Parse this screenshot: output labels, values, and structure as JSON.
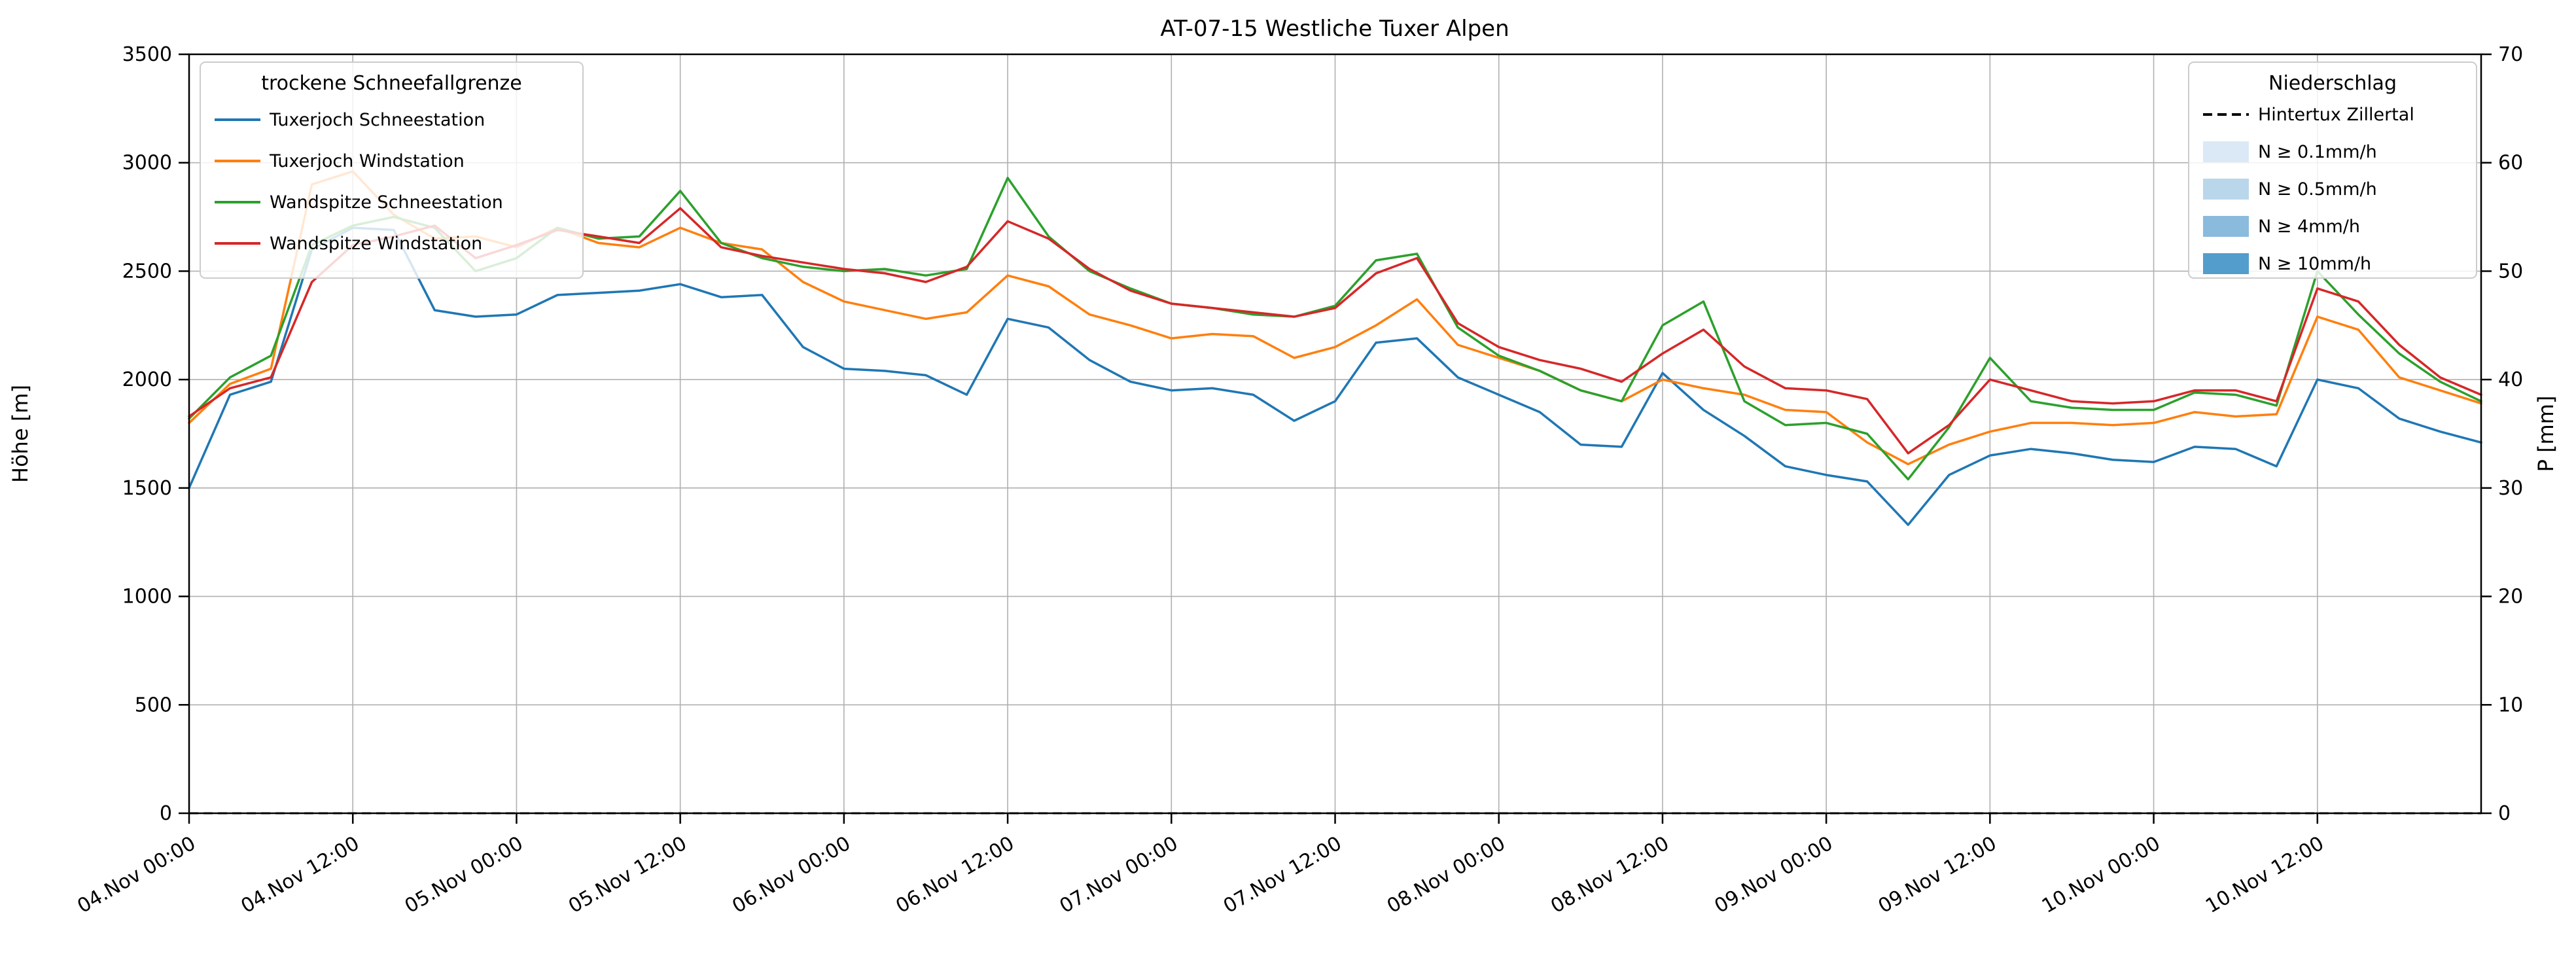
{
  "chart_data": {
    "type": "line",
    "title": "AT-07-15 Westliche Tuxer Alpen",
    "ylabel_left": "Höhe [m]",
    "ylabel_right": "P [mm]",
    "ylim_left": [
      0,
      3500
    ],
    "yticks_left": [
      0,
      500,
      1000,
      1500,
      2000,
      2500,
      3000,
      3500
    ],
    "ylim_right": [
      0,
      70
    ],
    "yticks_right": [
      0,
      10,
      20,
      30,
      40,
      50,
      60,
      70
    ],
    "grid": true,
    "legend_position_left": "upper left",
    "legend_position_right": "upper right",
    "xlim_hours": [
      0,
      168
    ],
    "xticks": [
      {
        "t": 0,
        "label": "04.Nov 00:00"
      },
      {
        "t": 12,
        "label": "04.Nov 12:00"
      },
      {
        "t": 24,
        "label": "05.Nov 00:00"
      },
      {
        "t": 36,
        "label": "05.Nov 12:00"
      },
      {
        "t": 48,
        "label": "06.Nov 00:00"
      },
      {
        "t": 60,
        "label": "06.Nov 12:00"
      },
      {
        "t": 72,
        "label": "07.Nov 00:00"
      },
      {
        "t": 84,
        "label": "07.Nov 12:00"
      },
      {
        "t": 96,
        "label": "08.Nov 00:00"
      },
      {
        "t": 108,
        "label": "08.Nov 12:00"
      },
      {
        "t": 120,
        "label": "09.Nov 00:00"
      },
      {
        "t": 132,
        "label": "09.Nov 12:00"
      },
      {
        "t": 144,
        "label": "10.Nov 00:00"
      },
      {
        "t": 156,
        "label": "10.Nov 12:00"
      }
    ],
    "x_hours": [
      0,
      3,
      6,
      9,
      12,
      15,
      18,
      21,
      24,
      27,
      30,
      33,
      36,
      39,
      42,
      45,
      48,
      51,
      54,
      57,
      60,
      63,
      66,
      69,
      72,
      75,
      78,
      81,
      84,
      87,
      90,
      93,
      96,
      99,
      102,
      105,
      108,
      111,
      114,
      117,
      120,
      123,
      126,
      129,
      132,
      135,
      138,
      141,
      144,
      147,
      150,
      153,
      156,
      159,
      162,
      165,
      168
    ],
    "series": [
      {
        "name": "Tuxerjoch Schneestation",
        "color": "#1f77b4",
        "axis": "left",
        "values": [
          1500,
          1930,
          1990,
          2600,
          2700,
          2690,
          2320,
          2290,
          2300,
          2390,
          2400,
          2410,
          2440,
          2380,
          2390,
          2150,
          2050,
          2040,
          2020,
          1930,
          2280,
          2240,
          2090,
          1990,
          1950,
          1960,
          1930,
          1810,
          1900,
          2170,
          2190,
          2010,
          1930,
          1850,
          1700,
          1690,
          2030,
          1860,
          1740,
          1600,
          1560,
          1530,
          1330,
          1560,
          1650,
          1680,
          1660,
          1630,
          1620,
          1690,
          1680,
          1600,
          2000,
          1960,
          1820,
          1760,
          1710
        ]
      },
      {
        "name": "Tuxerjoch Windstation",
        "color": "#ff7f0e",
        "axis": "left",
        "values": [
          1800,
          1980,
          2050,
          2900,
          2960,
          2760,
          2650,
          2660,
          2610,
          2700,
          2630,
          2610,
          2700,
          2630,
          2600,
          2450,
          2360,
          2320,
          2280,
          2310,
          2480,
          2430,
          2300,
          2250,
          2190,
          2210,
          2200,
          2100,
          2150,
          2250,
          2370,
          2160,
          2100,
          2040,
          1950,
          1900,
          2000,
          1960,
          1930,
          1860,
          1850,
          1710,
          1610,
          1700,
          1760,
          1800,
          1800,
          1790,
          1800,
          1850,
          1830,
          1840,
          2290,
          2230,
          2010,
          1950,
          1890
        ]
      },
      {
        "name": "Wandspitze Schneestation",
        "color": "#2ca02c",
        "axis": "left",
        "values": [
          1820,
          2010,
          2110,
          2620,
          2710,
          2750,
          2700,
          2500,
          2560,
          2700,
          2650,
          2660,
          2870,
          2630,
          2560,
          2520,
          2500,
          2510,
          2480,
          2510,
          2930,
          2660,
          2500,
          2420,
          2350,
          2330,
          2300,
          2290,
          2340,
          2550,
          2580,
          2240,
          2110,
          2040,
          1950,
          1900,
          2250,
          2360,
          1900,
          1790,
          1800,
          1750,
          1540,
          1780,
          2100,
          1900,
          1870,
          1860,
          1860,
          1940,
          1930,
          1880,
          2500,
          2300,
          2120,
          1990,
          1900
        ]
      },
      {
        "name": "Wandspitze Windstation",
        "color": "#d62728",
        "axis": "left",
        "values": [
          1830,
          1960,
          2010,
          2450,
          2620,
          2660,
          2710,
          2560,
          2620,
          2690,
          2660,
          2630,
          2790,
          2610,
          2570,
          2540,
          2510,
          2490,
          2450,
          2520,
          2730,
          2650,
          2510,
          2410,
          2350,
          2330,
          2310,
          2290,
          2330,
          2490,
          2560,
          2260,
          2150,
          2090,
          2050,
          1990,
          2120,
          2230,
          2060,
          1960,
          1950,
          1910,
          1660,
          1790,
          2000,
          1950,
          1900,
          1890,
          1900,
          1950,
          1950,
          1900,
          2420,
          2360,
          2160,
          2010,
          1930
        ]
      }
    ],
    "precipitation_series": {
      "name": "Hintertux Zillertal",
      "color": "#000000",
      "style": "dashed",
      "axis": "right",
      "values_mm": [
        0,
        0,
        0,
        0,
        0,
        0,
        0,
        0,
        0,
        0,
        0,
        0,
        0,
        0,
        0,
        0,
        0,
        0,
        0,
        0,
        0,
        0,
        0,
        0,
        0,
        0,
        0,
        0,
        0,
        0,
        0,
        0,
        0,
        0,
        0,
        0,
        0,
        0,
        0,
        0,
        0,
        0,
        0,
        0,
        0,
        0,
        0,
        0,
        0,
        0,
        0,
        0,
        0,
        0,
        0,
        0,
        0
      ]
    },
    "legend_left": {
      "title": "trockene Schneefallgrenze",
      "entries": [
        "Tuxerjoch Schneestation",
        "Tuxerjoch Windstation",
        "Wandspitze Schneestation",
        "Wandspitze Windstation"
      ]
    },
    "legend_right": {
      "title": "Niederschlag",
      "dashed_entry": "Hintertux Zillertal",
      "intensity_levels": [
        {
          "label": "N ≥ 0.1mm/h",
          "color": "#dbe9f6"
        },
        {
          "label": "N ≥ 0.5mm/h",
          "color": "#bad6eb"
        },
        {
          "label": "N ≥ 4mm/h",
          "color": "#8abbdc"
        },
        {
          "label": "N ≥ 10mm/h",
          "color": "#539dcc"
        }
      ]
    }
  }
}
